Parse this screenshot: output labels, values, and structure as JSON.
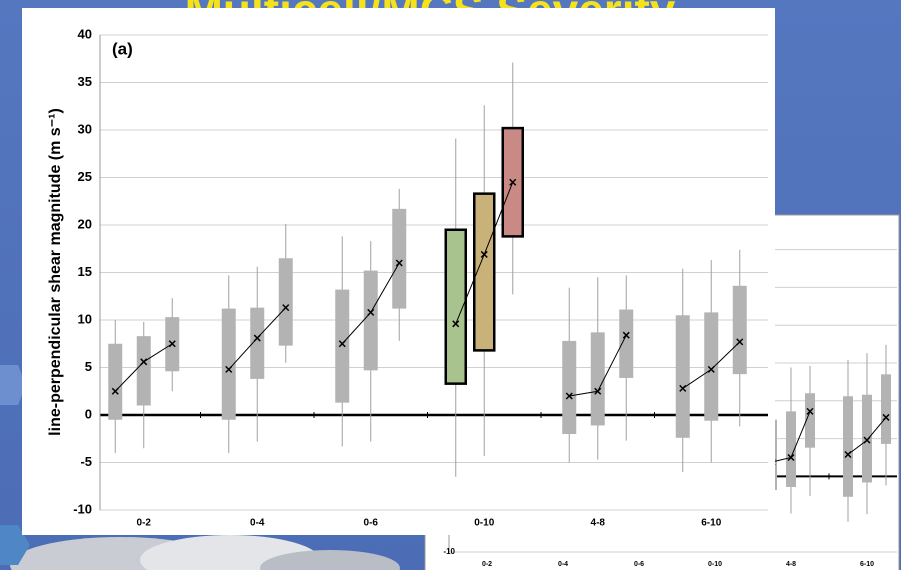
{
  "slide_title": "Multicell/MCS Severity",
  "chart_data": [
    {
      "type": "box",
      "panel_label": "(a)",
      "ylabel": "line-perpendicular shear magnitude (m s⁻¹)",
      "categories": [
        "0-2",
        "0-4",
        "0-6",
        "0-10",
        "4-8",
        "6-10"
      ],
      "groups": [
        [
          {
            "low": -4,
            "q1": -0.5,
            "q3": 7.5,
            "high": 10,
            "mean": 2.5,
            "color": "#b3b3b3"
          },
          {
            "low": -3.5,
            "q1": 1,
            "q3": 8.3,
            "high": 9.8,
            "mean": 5.6,
            "color": "#b3b3b3"
          },
          {
            "low": 2.5,
            "q1": 4.6,
            "q3": 10.3,
            "high": 12.3,
            "mean": 7.5,
            "color": "#b3b3b3"
          }
        ],
        [
          {
            "low": -4,
            "q1": -0.5,
            "q3": 11.2,
            "high": 14.7,
            "mean": 4.8,
            "color": "#b3b3b3"
          },
          {
            "low": -2.8,
            "q1": 3.8,
            "q3": 11.3,
            "high": 15.6,
            "mean": 8.1,
            "color": "#b3b3b3"
          },
          {
            "low": 5.5,
            "q1": 7.3,
            "q3": 16.5,
            "high": 20.1,
            "mean": 11.3,
            "color": "#b3b3b3"
          }
        ],
        [
          {
            "low": -3.3,
            "q1": 1.3,
            "q3": 13.2,
            "high": 18.8,
            "mean": 7.5,
            "color": "#b3b3b3"
          },
          {
            "low": -2.8,
            "q1": 4.7,
            "q3": 15.2,
            "high": 18.3,
            "mean": 10.8,
            "color": "#b3b3b3"
          },
          {
            "low": 7.8,
            "q1": 11.2,
            "q3": 21.7,
            "high": 23.8,
            "mean": 16,
            "color": "#b3b3b3"
          }
        ],
        [
          {
            "low": -6.5,
            "q1": 3.3,
            "q3": 19.5,
            "high": 29.1,
            "mean": 9.6,
            "color": "#a9c38f",
            "edgecolor": "#000000"
          },
          {
            "low": -4.3,
            "q1": 6.8,
            "q3": 23.3,
            "high": 32.6,
            "mean": 16.9,
            "color": "#c9b27a",
            "edgecolor": "#000000"
          },
          {
            "low": 12.7,
            "q1": 18.8,
            "q3": 30.2,
            "high": 37.1,
            "mean": 24.5,
            "color": "#c98a86",
            "edgecolor": "#000000"
          }
        ],
        [
          {
            "low": -5,
            "q1": -2,
            "q3": 7.8,
            "high": 13.4,
            "mean": 2,
            "color": "#b3b3b3"
          },
          {
            "low": -4.7,
            "q1": -1.1,
            "q3": 8.7,
            "high": 14.5,
            "mean": 2.5,
            "color": "#b3b3b3"
          },
          {
            "low": -2.7,
            "q1": 3.9,
            "q3": 11.1,
            "high": 14.7,
            "mean": 8.4,
            "color": "#b3b3b3"
          }
        ],
        [
          {
            "low": -6,
            "q1": -2.4,
            "q3": 10.5,
            "high": 15.4,
            "mean": 2.8,
            "color": "#b3b3b3"
          },
          {
            "low": -5,
            "q1": -0.6,
            "q3": 10.8,
            "high": 16.3,
            "mean": 4.8,
            "color": "#b3b3b3"
          },
          {
            "low": -1.2,
            "q1": 4.3,
            "q3": 13.6,
            "high": 17.4,
            "mean": 7.7,
            "color": "#b3b3b3"
          }
        ]
      ],
      "ylim": [
        -10,
        40
      ],
      "yticks": [
        -10,
        -5,
        0,
        5,
        10,
        15,
        20,
        25,
        30,
        35,
        40
      ],
      "grid": true
    },
    {
      "type": "box",
      "categories": [
        "0-2",
        "0-4",
        "0-6",
        "0-10",
        "4-8",
        "6-10"
      ],
      "groups": [
        [],
        [],
        [],
        [],
        [
          {
            "low": -5,
            "q1": -1.8,
            "q3": 7.5,
            "high": 12,
            "mean": 1.9,
            "color": "#b3b3b3"
          },
          {
            "low": -4.9,
            "q1": -1.4,
            "q3": 8.6,
            "high": 14.4,
            "mean": 2.5,
            "color": "#b3b3b3"
          },
          {
            "low": -2.6,
            "q1": 3.8,
            "q3": 11,
            "high": 14.6,
            "mean": 8.6,
            "color": "#b3b3b3"
          }
        ],
        [
          {
            "low": -6,
            "q1": -2.7,
            "q3": 10.6,
            "high": 15.4,
            "mean": 2.9,
            "color": "#b3b3b3"
          },
          {
            "low": -5,
            "q1": -0.8,
            "q3": 10.8,
            "high": 16.3,
            "mean": 4.8,
            "color": "#b3b3b3"
          },
          {
            "low": -1.2,
            "q1": 4.3,
            "q3": 13.5,
            "high": 17.4,
            "mean": 7.8,
            "color": "#b3b3b3"
          }
        ]
      ],
      "ylim": [
        -10,
        40
      ],
      "yticks": [
        -10
      ],
      "ygrid": [
        0,
        5,
        10,
        15,
        20,
        25,
        30,
        35
      ],
      "grid": true
    }
  ]
}
